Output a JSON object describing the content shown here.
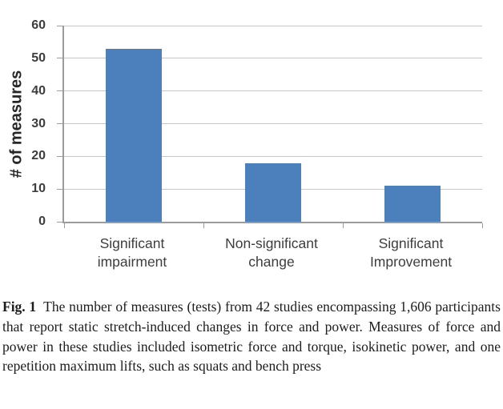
{
  "figure": {
    "caption": {
      "label": "Fig. 1",
      "text": "The number of measures (tests) from 42 studies encompassing 1,606 participants that report static stretch-induced changes in force and power. Measures of force and power in these studies included isometric force and torque, isokinetic power, and one repetition maximum lifts, such as squats and bench press"
    }
  },
  "chart_data": {
    "type": "bar",
    "categories": [
      "Significant impairment",
      "Non-significant change",
      "Significant Improvement"
    ],
    "category_label_lines": [
      [
        "Significant",
        "impairment"
      ],
      [
        "Non-significant",
        "change"
      ],
      [
        "Significant",
        "Improvement"
      ]
    ],
    "values": [
      53,
      18,
      11
    ],
    "title": "",
    "xlabel": "",
    "ylabel": "# of measures",
    "ylim": [
      0,
      60
    ],
    "yticks": [
      0,
      10,
      20,
      30,
      40,
      50,
      60
    ],
    "grid": true,
    "legend": "none",
    "bar_color": "#4C80BD",
    "gridline_color": "#C6C6C6",
    "axis_color": "#9B9B9B",
    "text_color": "#3D3D3D"
  }
}
